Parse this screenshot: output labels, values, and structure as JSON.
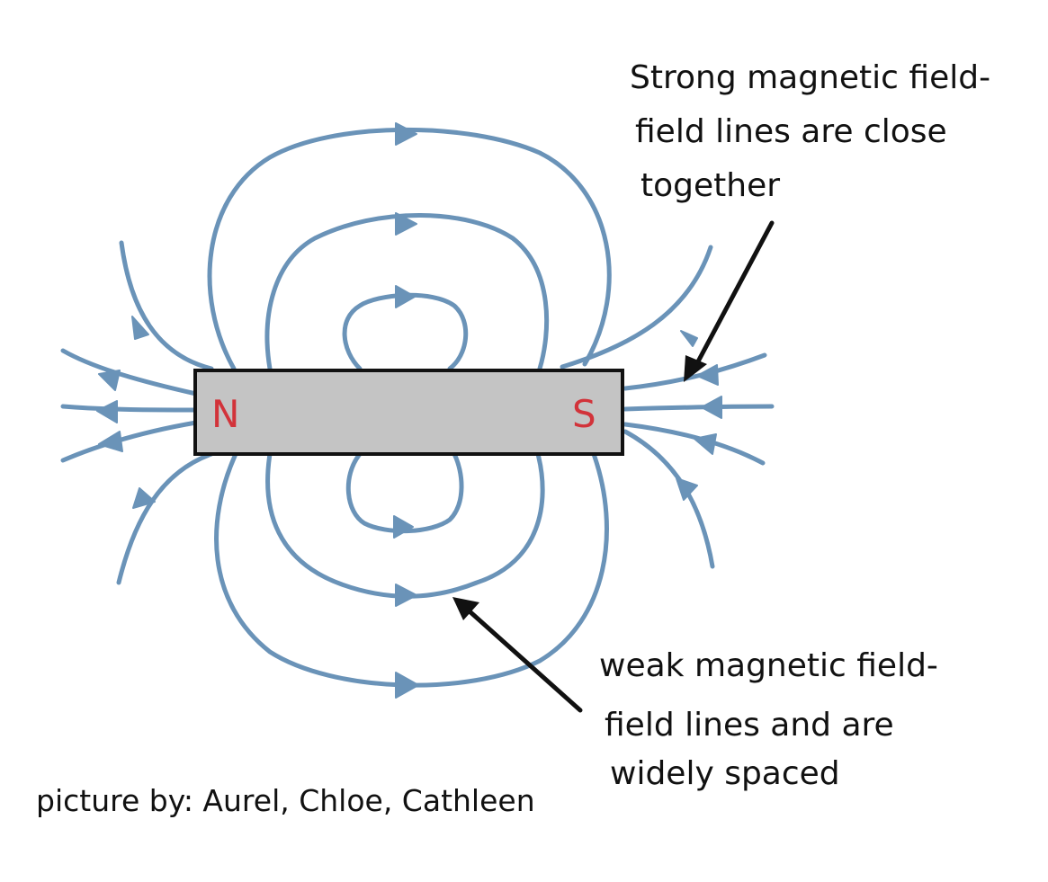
{
  "magnet": {
    "north_label": "N",
    "south_label": "S"
  },
  "annotations": {
    "strong": {
      "lines": [
        "Strong magnetic field-",
        "field lines are close",
        "together"
      ]
    },
    "weak": {
      "lines": [
        "weak magnetic field-",
        "field lines and are",
        "widely spaced"
      ]
    }
  },
  "credit": "picture by: Aurel, Chloe, Cathleen",
  "colors": {
    "field_line": "#6a93b8",
    "magnet_fill": "#c4c4c4",
    "pole_label": "#d2333a",
    "ink": "#111111"
  }
}
